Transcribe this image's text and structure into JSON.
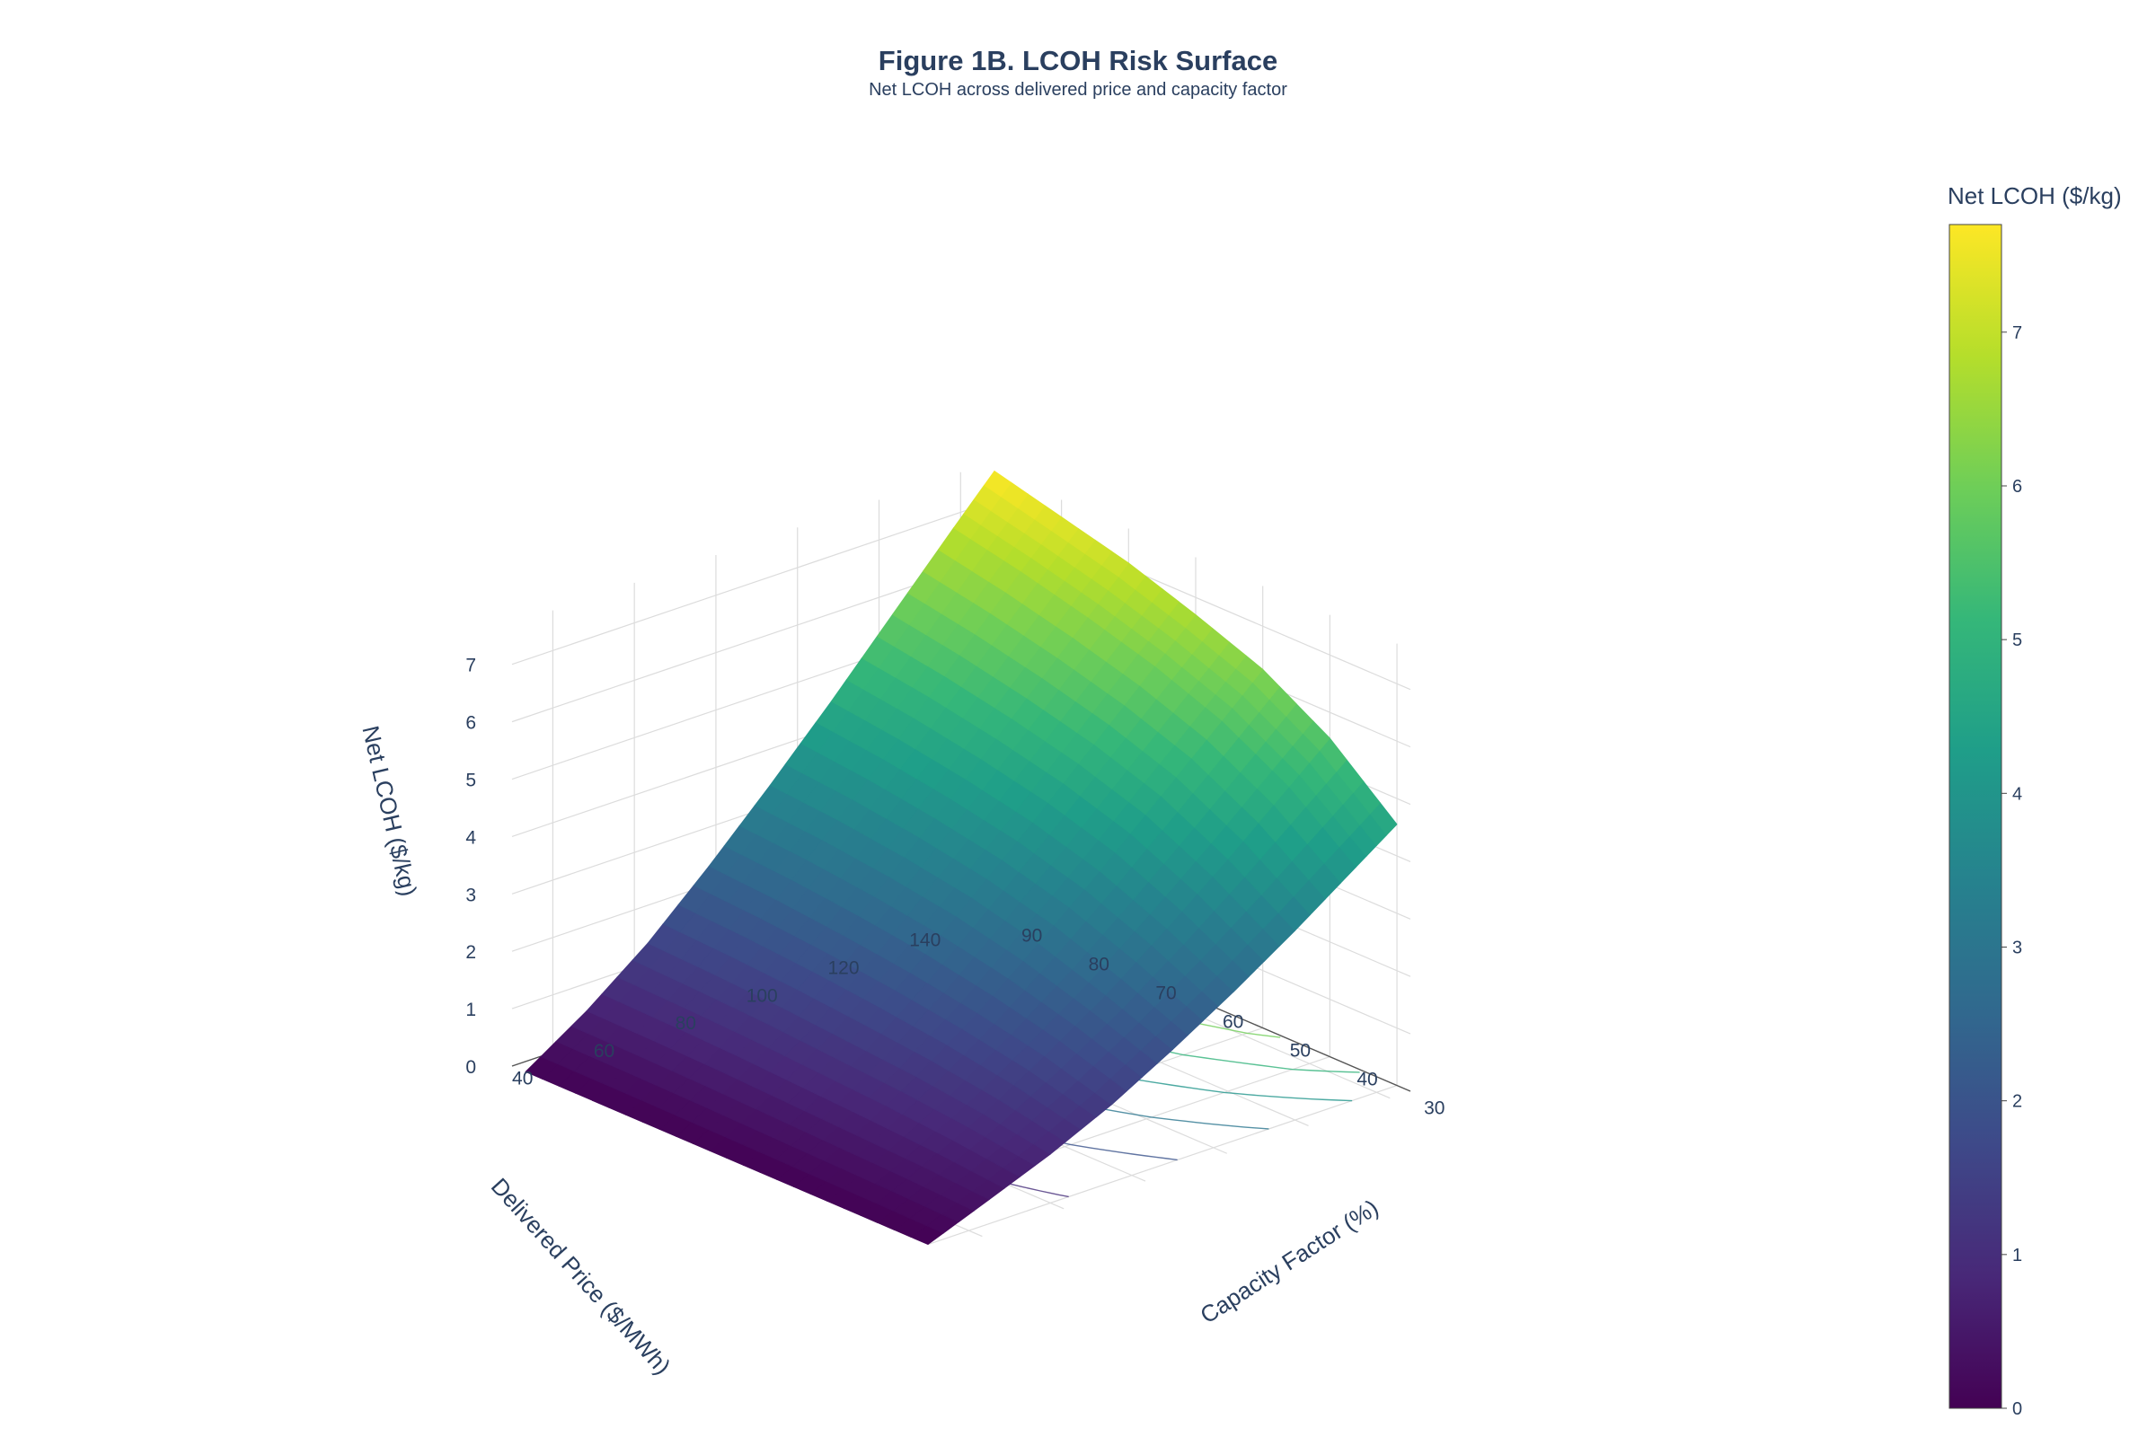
{
  "chart_data": {
    "type": "surface",
    "title": "Figure 1B. LCOH Risk Surface",
    "subtitle": "Net LCOH across delivered price and capacity factor",
    "x_axis": {
      "label": "Capacity Factor (%)",
      "ticks": [
        30,
        40,
        50,
        60,
        70,
        80,
        90
      ],
      "range": [
        28,
        92
      ]
    },
    "y_axis": {
      "label": "Delivered Price ($/MWh)",
      "ticks": [
        40,
        60,
        80,
        100,
        120,
        140
      ],
      "range": [
        30,
        145
      ]
    },
    "z_axis": {
      "label": "Net LCOH ($/kg)",
      "ticks": [
        0,
        1,
        2,
        3,
        4,
        5,
        6,
        7
      ],
      "range": [
        0,
        7.7
      ]
    },
    "capacity_factor": [
      30,
      40,
      50,
      60,
      70,
      80,
      90
    ],
    "delivered_price": [
      30,
      45,
      60,
      75,
      90,
      105,
      120,
      135,
      145
    ],
    "net_lcoh": [
      [
        0.0,
        0.42,
        0.85,
        1.35,
        1.95,
        2.6,
        3.3,
        4.05,
        4.55
      ],
      [
        0.0,
        0.5,
        1.05,
        1.7,
        2.4,
        3.2,
        4.05,
        4.95,
        5.55
      ],
      [
        0.0,
        0.55,
        1.2,
        1.95,
        2.8,
        3.7,
        4.65,
        5.6,
        6.25
      ],
      [
        0.0,
        0.6,
        1.3,
        2.15,
        3.1,
        4.05,
        5.05,
        6.05,
        6.7
      ],
      [
        0.0,
        0.65,
        1.4,
        2.3,
        3.3,
        4.3,
        5.35,
        6.4,
        7.1
      ],
      [
        0.0,
        0.68,
        1.47,
        2.42,
        3.45,
        4.5,
        5.6,
        6.7,
        7.4
      ],
      [
        0.0,
        0.7,
        1.52,
        2.5,
        3.55,
        4.65,
        5.8,
        6.95,
        7.7
      ]
    ],
    "colorscale": "viridis",
    "colorscale_stops": [
      "#440154",
      "#482878",
      "#3e4989",
      "#31688e",
      "#26828e",
      "#1f9e89",
      "#35b779",
      "#6ece58",
      "#b5de2b",
      "#fde725"
    ],
    "colorbar": {
      "title": "Net LCOH ($/kg)",
      "ticks": [
        0,
        1,
        2,
        3,
        4,
        5,
        6,
        7
      ],
      "range": [
        0,
        7.7
      ]
    },
    "contours_projected_on_floor": true,
    "grid": true
  }
}
